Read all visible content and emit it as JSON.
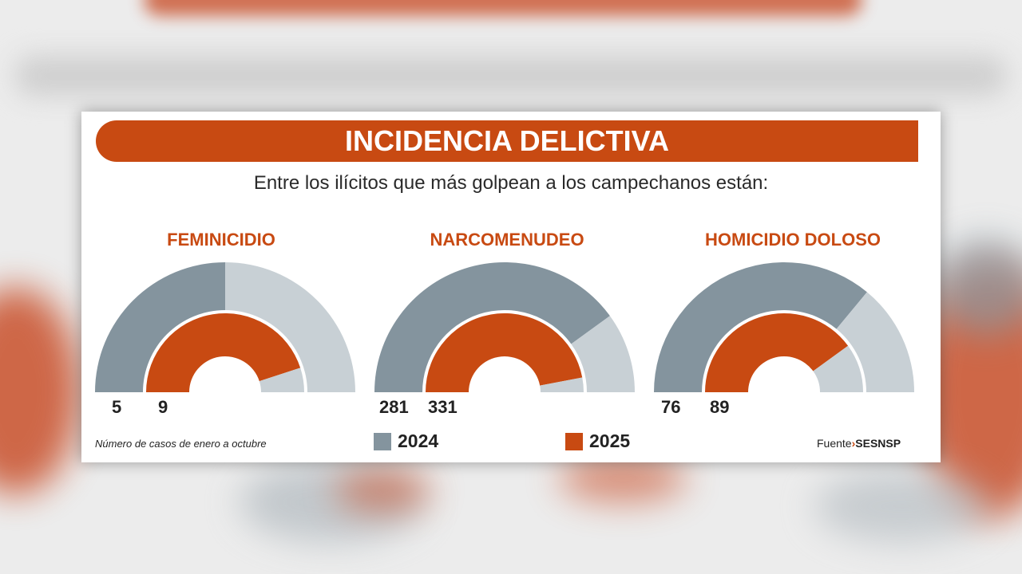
{
  "title": "INCIDENCIA DELICTIVA",
  "subtitle": "Entre los ilícitos que más golpean a los campechanos están:",
  "note": "Número de casos de enero a octubre",
  "source": {
    "label": "Fuente",
    "name": "SESNSP"
  },
  "colors": {
    "accent": "#c84a12",
    "series_2024": "#84949e",
    "series_2024_remainder": "#c8d0d5",
    "series_2025": "#c84a12",
    "series_2025_remainder": "#c8d0d5"
  },
  "chart_data": {
    "type": "donut-gauge",
    "legend": [
      "2024",
      "2025"
    ],
    "series_names": [
      "2024",
      "2025"
    ],
    "gauges": [
      {
        "title": "FEMINICIDIO",
        "value_2024": 5,
        "value_2025": 9,
        "fill_2024": 0.5,
        "fill_2025": 0.9
      },
      {
        "title": "NARCOMENUDEO",
        "value_2024": 281,
        "value_2025": 331,
        "fill_2024": 0.8,
        "fill_2025": 0.94
      },
      {
        "title": "HOMICIDIO DOLOSO",
        "value_2024": 76,
        "value_2025": 89,
        "fill_2024": 0.72,
        "fill_2025": 0.8
      }
    ]
  }
}
